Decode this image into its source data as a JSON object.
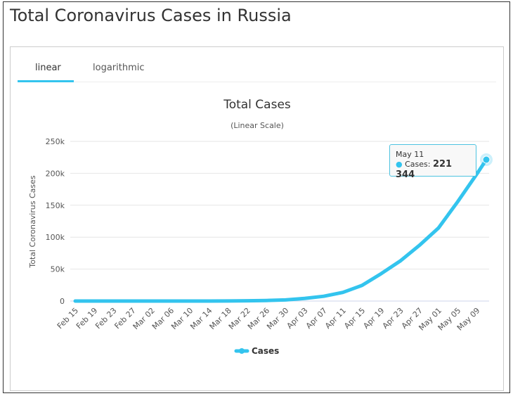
{
  "page": {
    "title": "Total Coronavirus Cases in Russia"
  },
  "tabs": [
    {
      "label": "linear",
      "active": true
    },
    {
      "label": "logarithmic",
      "active": false
    }
  ],
  "tooltip": {
    "date": "May 11",
    "series": "Cases:",
    "value": "221 344"
  },
  "colors": {
    "series": "#33c4ee",
    "accent": "#33c4ee"
  },
  "chart_data": {
    "type": "line",
    "title": "Total Cases",
    "subtitle": "(Linear Scale)",
    "ylabel": "Total Coronavirus Cases",
    "xlabel": "",
    "ylim": [
      0,
      250000
    ],
    "yticks": [
      0,
      50000,
      100000,
      150000,
      200000,
      250000
    ],
    "ytick_labels": [
      "0",
      "50k",
      "100k",
      "150k",
      "200k",
      "250k"
    ],
    "xtick_labels": [
      "Feb 15",
      "Feb 19",
      "Feb 23",
      "Feb 27",
      "Mar 02",
      "Mar 06",
      "Mar 10",
      "Mar 14",
      "Mar 18",
      "Mar 22",
      "Mar 26",
      "Mar 30",
      "Apr 03",
      "Apr 07",
      "Apr 11",
      "Apr 15",
      "Apr 19",
      "Apr 23",
      "Apr 27",
      "May 01",
      "May 05",
      "May 09"
    ],
    "grid": true,
    "legend": "bottom-center",
    "series": [
      {
        "name": "Cases",
        "x": [
          "Feb 15",
          "Feb 19",
          "Feb 23",
          "Feb 27",
          "Mar 02",
          "Mar 06",
          "Mar 10",
          "Mar 14",
          "Mar 18",
          "Mar 22",
          "Mar 26",
          "Mar 30",
          "Apr 03",
          "Apr 07",
          "Apr 11",
          "Apr 15",
          "Apr 19",
          "Apr 23",
          "Apr 27",
          "May 01",
          "May 05",
          "May 09",
          "May 11"
        ],
        "values": [
          2,
          2,
          2,
          2,
          3,
          10,
          20,
          59,
          147,
          367,
          840,
          1836,
          4149,
          7497,
          13584,
          24490,
          42853,
          62773,
          87147,
          114431,
          155370,
          198676,
          221344
        ]
      }
    ]
  }
}
